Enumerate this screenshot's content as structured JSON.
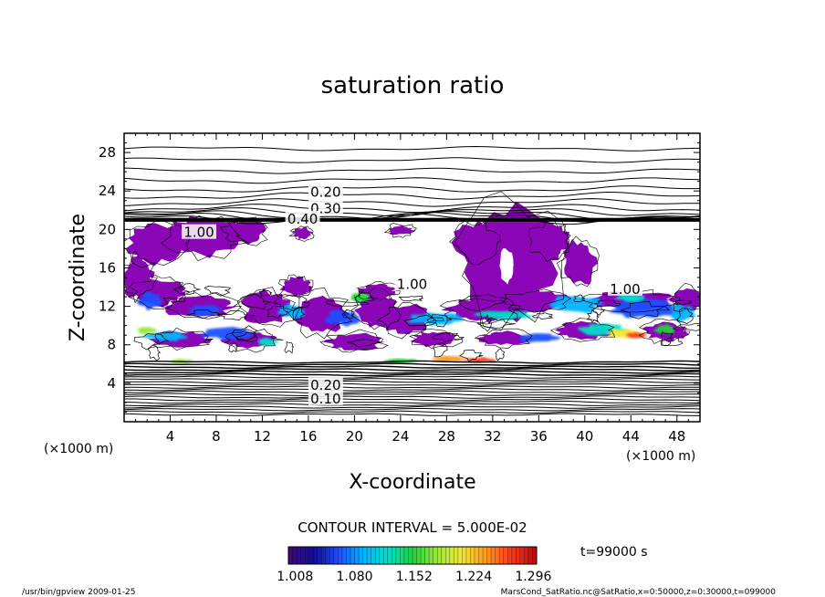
{
  "chart_data": {
    "type": "heatmap",
    "title": "saturation ratio",
    "xlabel": "X-coordinate",
    "ylabel": "Z-coordinate",
    "x_unit": "(×1000 m)",
    "y_unit": "(×1000 m)",
    "xlim": [
      0,
      50
    ],
    "ylim": [
      0,
      30
    ],
    "x_ticks": [
      4,
      8,
      12,
      16,
      20,
      24,
      28,
      32,
      36,
      40,
      44,
      48
    ],
    "y_ticks": [
      4,
      8,
      12,
      16,
      20,
      24,
      28
    ],
    "contour_interval_text": "CONTOUR INTERVAL = 5.000E-02",
    "contour_labels": [
      {
        "text": "0.20",
        "x": 17.5,
        "y": 23.6
      },
      {
        "text": "0.30",
        "x": 17.5,
        "y": 21.9
      },
      {
        "text": "0.40",
        "x": 15.5,
        "y": 20.8
      },
      {
        "text": "1.00",
        "x": 6.5,
        "y": 19.4
      },
      {
        "text": "1.00",
        "x": 25.0,
        "y": 14.0
      },
      {
        "text": "1.00",
        "x": 43.5,
        "y": 13.5
      },
      {
        "text": "0.20",
        "x": 17.5,
        "y": 3.5
      },
      {
        "text": "0.10",
        "x": 17.5,
        "y": 2.1
      }
    ],
    "colorbar": {
      "labels": [
        "1.008",
        "1.080",
        "1.152",
        "1.224",
        "1.296"
      ],
      "values": [
        1.008,
        1.08,
        1.152,
        1.224,
        1.296
      ],
      "range": [
        1.0,
        1.3
      ],
      "colors": [
        "#3b0a78",
        "#120e9a",
        "#1f50ff",
        "#00b5ff",
        "#00e0c8",
        "#22d040",
        "#9ae83a",
        "#f2e83a",
        "#ff9a20",
        "#ff3b1a",
        "#b81010"
      ]
    },
    "time_text": "t=99000 s",
    "footer_left": "/usr/bin/gpview  2009-01-25",
    "footer_right": "MarsCond_SatRatio.nc@SatRatio,x=0:50000,z=0:30000,t=099000"
  }
}
